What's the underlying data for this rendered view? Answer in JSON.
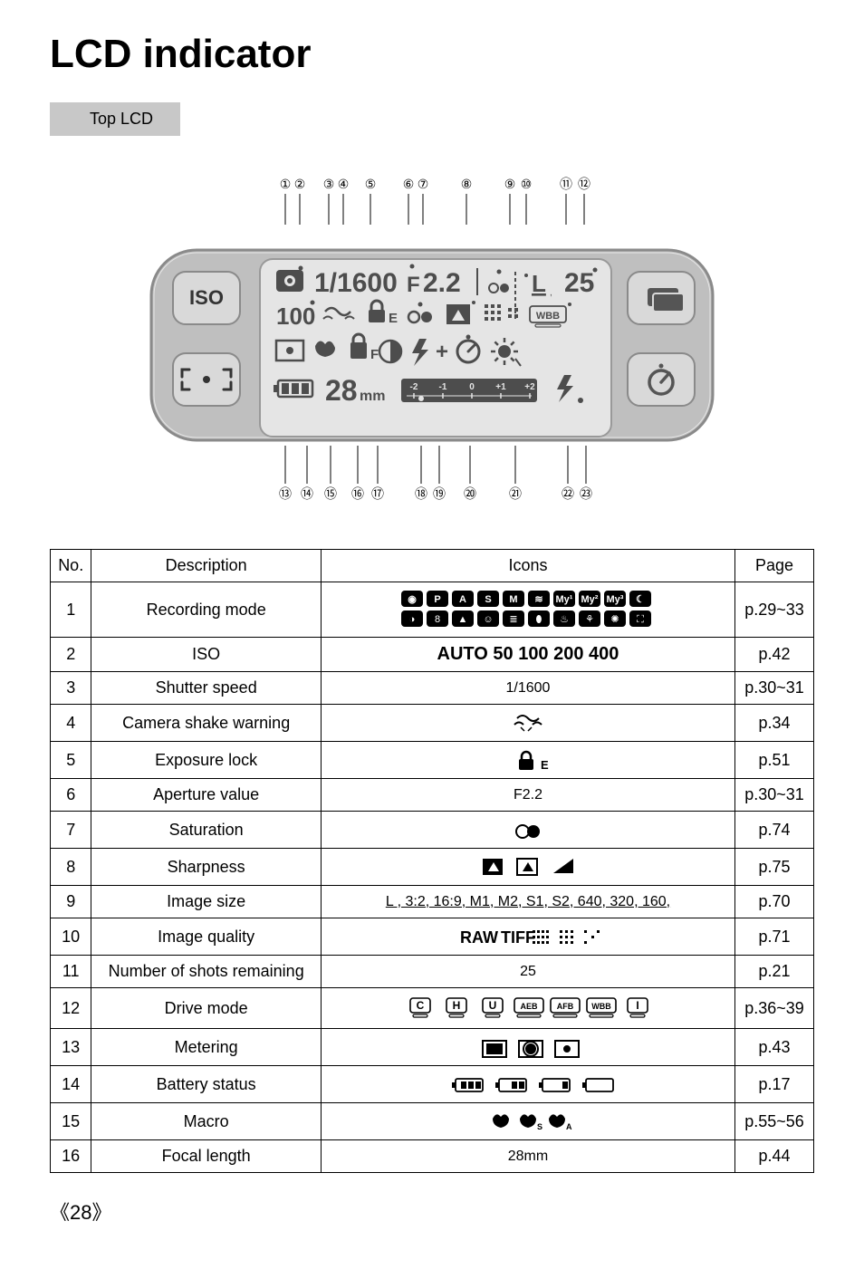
{
  "title": "LCD indicator",
  "subhead": "Top LCD",
  "page_number": "28",
  "diagram": {
    "callout_numbers_top": [
      "①",
      "②",
      "③",
      "④",
      "⑤",
      "⑥",
      "⑦",
      "⑧",
      "⑨",
      "⑩",
      "⑪",
      "⑫"
    ],
    "callout_numbers_bottom": [
      "⑬",
      "⑭",
      "⑮",
      "⑯",
      "⑰",
      "⑱",
      "⑲",
      "⑳",
      "㉑",
      "㉒",
      "㉓"
    ],
    "left_labels": [
      "ISO"
    ],
    "lcd_line1_shutter": "1/1600",
    "lcd_line1_f": "F",
    "lcd_line1_aperture": "2.2",
    "lcd_line1_size": "L",
    "lcd_line1_shots": "25",
    "lcd_line2_iso": "100",
    "lcd_line2_el": "E",
    "lcd_line2_wbb": "WBB",
    "lcd_line3_af": "F",
    "lcd_line3_plus": "+",
    "lcd_line4_focal": "28",
    "lcd_line4_mm": "mm",
    "ev_scale": [
      "-2",
      "-1",
      "0",
      "+1",
      "+2"
    ],
    "colors": {
      "body": "#bfbfbf",
      "body_stroke": "#8a8a8a",
      "screen": "#e5e5e5",
      "lcd_text": "#4d4d4d",
      "lcd_accent": "#4d4d4d",
      "btn": "#d9d9d9",
      "line": "#000000"
    }
  },
  "table": {
    "headers": [
      "No.",
      "Description",
      "Icons",
      "Page"
    ],
    "rows": [
      {
        "no": "1",
        "desc": "Recording mode",
        "icons_type": "recmode",
        "page": "p.29~33"
      },
      {
        "no": "2",
        "desc": "ISO",
        "icons_type": "text",
        "icons_text": "AUTO 50 100 200 400",
        "page": "p.42"
      },
      {
        "no": "3",
        "desc": "Shutter speed",
        "icons_type": "text",
        "icons_text": "1/1600",
        "page": "p.30~31"
      },
      {
        "no": "4",
        "desc": "Camera shake warning",
        "icons_type": "shake",
        "page": "p.34"
      },
      {
        "no": "5",
        "desc": "Exposure lock",
        "icons_type": "lock",
        "page": "p.51"
      },
      {
        "no": "6",
        "desc": "Aperture value",
        "icons_type": "text",
        "icons_text": "F2.2",
        "page": "p.30~31"
      },
      {
        "no": "7",
        "desc": "Saturation",
        "icons_type": "saturation",
        "page": "p.74"
      },
      {
        "no": "8",
        "desc": "Sharpness",
        "icons_type": "sharpness",
        "page": "p.75"
      },
      {
        "no": "9",
        "desc": "Image size",
        "icons_type": "underlined",
        "icons_text": "L , 3:2, 16:9, M1, M2, S1, S2, 640, 320, 160,",
        "page": "p.70"
      },
      {
        "no": "10",
        "desc": "Image quality",
        "icons_type": "quality",
        "page": "p.71"
      },
      {
        "no": "11",
        "desc": "Number of shots remaining",
        "icons_type": "text",
        "icons_text": "25",
        "page": "p.21"
      },
      {
        "no": "12",
        "desc": "Drive mode",
        "icons_type": "drive",
        "page": "p.36~39"
      },
      {
        "no": "13",
        "desc": "Metering",
        "icons_type": "metering",
        "page": "p.43"
      },
      {
        "no": "14",
        "desc": "Battery status",
        "icons_type": "battery",
        "page": "p.17"
      },
      {
        "no": "15",
        "desc": "Macro",
        "icons_type": "macro",
        "page": "p.55~56"
      },
      {
        "no": "16",
        "desc": "Focal length",
        "icons_type": "text",
        "icons_text": "28mm",
        "page": "p.44"
      }
    ]
  }
}
